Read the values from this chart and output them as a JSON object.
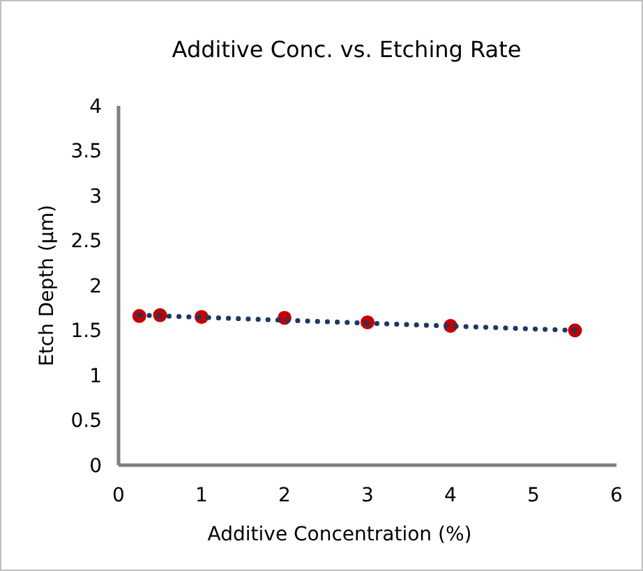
{
  "chart_data": {
    "type": "scatter",
    "title": "Additive Conc. vs. Etching Rate",
    "xlabel": "Additive Concentration (%)",
    "ylabel": "Etch Depth (µm)",
    "xlim": [
      0,
      6
    ],
    "xticks": [
      0,
      1,
      2,
      3,
      4,
      5,
      6
    ],
    "ylim": [
      0,
      4
    ],
    "yticks": [
      0,
      0.5,
      1,
      1.5,
      2,
      2.5,
      3,
      3.5,
      4
    ],
    "grid": false,
    "series": [
      {
        "type": "line",
        "color": "#1f3864",
        "line_style": "dotted",
        "marker": "none",
        "x": [
          0.25,
          5.5
        ],
        "values": [
          1.67,
          1.5
        ]
      },
      {
        "color": "#c00000",
        "marker": "circle",
        "x": [
          0.25,
          0.5,
          1,
          2,
          3,
          4,
          5.5
        ],
        "values": [
          1.66,
          1.67,
          1.65,
          1.64,
          1.59,
          1.55,
          1.5
        ]
      }
    ]
  }
}
